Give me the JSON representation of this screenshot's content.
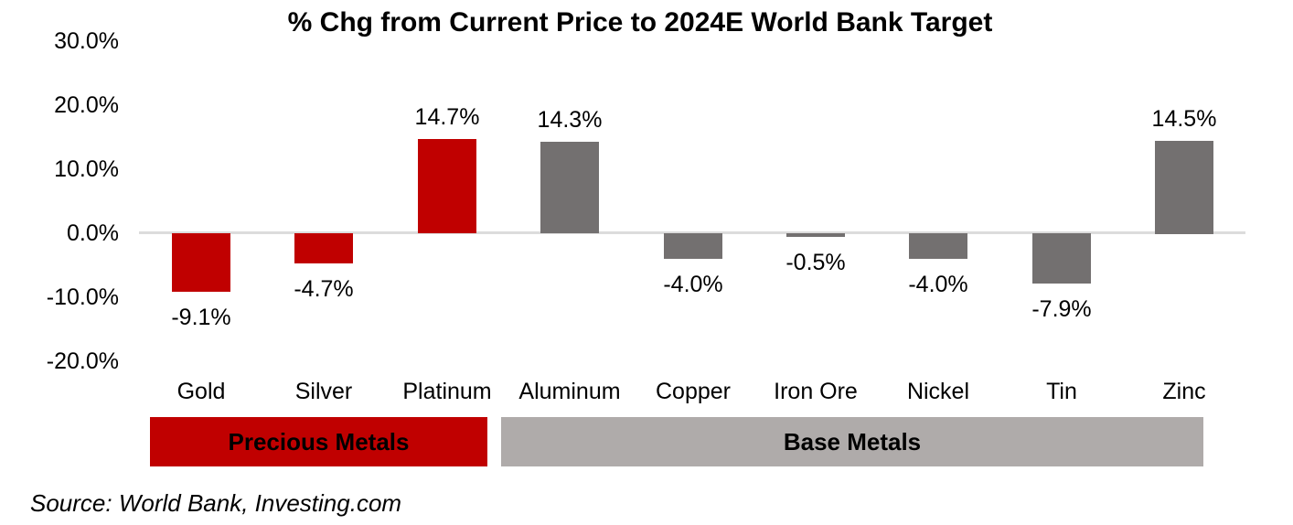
{
  "title": "% Chg from Current Price to 2024E World Bank Target",
  "footer": {
    "source": "Source: World Bank, Investing.com"
  },
  "colors": {
    "precious_bar": "#C00000",
    "base_bar": "#737070",
    "precious_band": "#C00000",
    "base_band": "#AFABAA",
    "gridline": "#DCDCDC",
    "text": "#000000"
  },
  "y_axis": {
    "tick_labels": [
      "30.0%",
      "20.0%",
      "10.0%",
      "0.0%",
      "-10.0%",
      "-20.0%"
    ],
    "tick_values": [
      30,
      20,
      10,
      0,
      -10,
      -20
    ]
  },
  "groups": [
    {
      "label": "Precious Metals",
      "color": "#C00000"
    },
    {
      "label": "Base Metals",
      "color": "#AFABAA"
    }
  ],
  "chart_data": {
    "type": "bar",
    "title": "% Chg from Current Price to 2024E World Bank Target",
    "categories": [
      "Gold",
      "Silver",
      "Platinum",
      "Aluminum",
      "Copper",
      "Iron Ore",
      "Nickel",
      "Tin",
      "Zinc"
    ],
    "values": [
      -9.1,
      -4.7,
      14.7,
      14.3,
      -4.0,
      -0.5,
      -4.0,
      -7.9,
      14.5
    ],
    "data_labels": [
      "-9.1%",
      "-4.7%",
      "14.7%",
      "14.3%",
      "-4.0%",
      "-0.5%",
      "-4.0%",
      "-7.9%",
      "14.5%"
    ],
    "group_of": [
      "precious",
      "precious",
      "precious",
      "base",
      "base",
      "base",
      "base",
      "base",
      "base"
    ],
    "series_groups": [
      {
        "name": "Precious Metals",
        "color": "#C00000",
        "categories": [
          "Gold",
          "Silver",
          "Platinum"
        ]
      },
      {
        "name": "Base Metals",
        "color": "#737070",
        "categories": [
          "Aluminum",
          "Copper",
          "Iron Ore",
          "Nickel",
          "Tin",
          "Zinc"
        ]
      }
    ],
    "xlabel": "",
    "ylabel": "",
    "ylim": [
      -20,
      30
    ],
    "yticks": [
      30,
      20,
      10,
      0,
      -10,
      -20
    ],
    "ytick_labels": [
      "30.0%",
      "20.0%",
      "10.0%",
      "0.0%",
      "-10.0%",
      "-20.0%"
    ],
    "grid": "zero-line-only",
    "legend": "none"
  }
}
